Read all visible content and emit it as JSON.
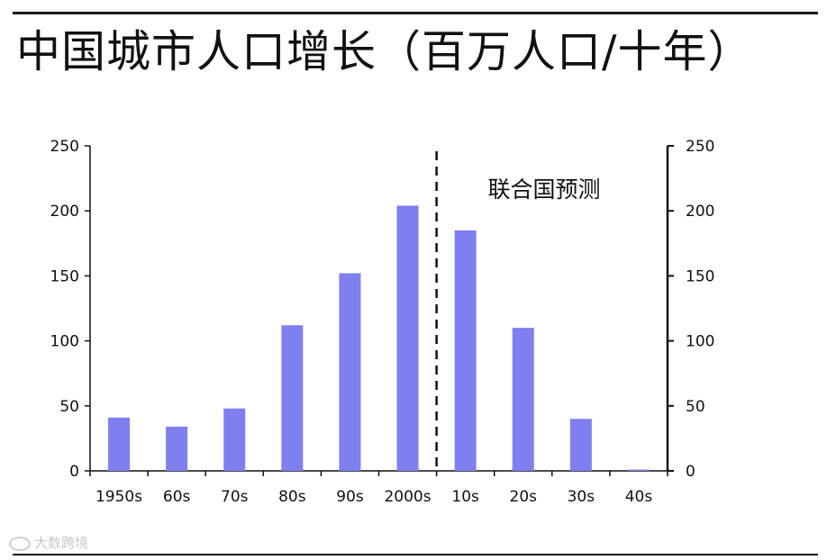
{
  "header": {
    "title": "中国城市人口增长（百万人口/十年）"
  },
  "watermark": {
    "text": "大数跨境"
  },
  "chart_data": {
    "type": "bar",
    "categories": [
      "1950s",
      "60s",
      "70s",
      "80s",
      "90s",
      "2000s",
      "10s",
      "20s",
      "30s",
      "40s"
    ],
    "values": [
      41,
      34,
      48,
      112,
      152,
      204,
      185,
      110,
      40,
      1
    ],
    "ylim": [
      0,
      250
    ],
    "yticks": [
      0,
      50,
      100,
      150,
      200,
      250
    ],
    "left_tick_labels": [
      "0",
      "50",
      "100",
      "150",
      "200",
      "250"
    ],
    "right_tick_labels": [
      "0",
      "50",
      "100",
      "150",
      "200",
      "250"
    ],
    "annotation": "联合国预测",
    "forecast_divider_after_index": 5,
    "bar_color": "#7f7ff0",
    "grid": false,
    "legend": "none"
  }
}
